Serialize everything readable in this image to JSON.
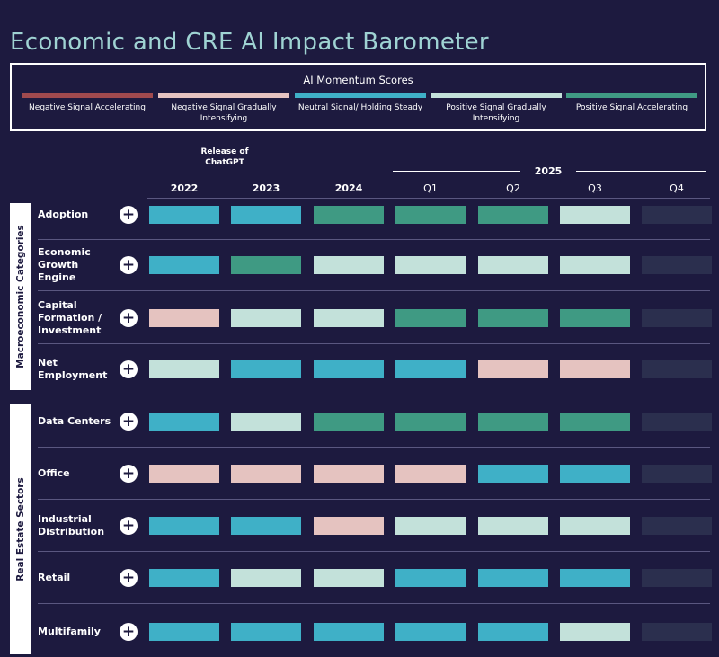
{
  "title": "Economic and CRE AI Impact Barometer",
  "legend": {
    "title": "AI Momentum Scores",
    "items": [
      {
        "key": "neg_acc",
        "label": "Negative Signal Accelerating",
        "color": "#a04a4e"
      },
      {
        "key": "neg_grad",
        "label": "Negative Signal Gradually Intensifying",
        "color": "#e5c3c0"
      },
      {
        "key": "neutral",
        "label": "Neutral Signal/ Holding Steady",
        "color": "#3fb0c7"
      },
      {
        "key": "pos_grad",
        "label": "Positive Signal Gradually Intensifying",
        "color": "#c3e1da"
      },
      {
        "key": "pos_acc",
        "label": "Positive Signal Accelerating",
        "color": "#3f9a83"
      }
    ]
  },
  "annotation": "Release of ChatGPT",
  "year_group": "2025",
  "columns": [
    "2022",
    "2023",
    "2024",
    "Q1",
    "Q2",
    "Q3",
    "Q4"
  ],
  "groups": [
    {
      "label": "Macroeconomic Categories"
    },
    {
      "label": "Real Estate Sectors"
    }
  ],
  "chart_data": {
    "type": "heatmap",
    "title": "Economic and CRE AI Impact Barometer",
    "columns": [
      "2022",
      "2023",
      "2024",
      "Q1",
      "Q2",
      "Q3",
      "Q4"
    ],
    "legend_placement": "top",
    "rows": [
      {
        "group": "Macroeconomic Categories",
        "label": "Adoption",
        "values": [
          "neutral",
          "neutral",
          "pos_acc",
          "pos_acc",
          "pos_acc",
          "pos_grad",
          "empty"
        ]
      },
      {
        "group": "Macroeconomic Categories",
        "label": "Economic Growth Engine",
        "values": [
          "neutral",
          "pos_acc",
          "pos_grad",
          "pos_grad",
          "pos_grad",
          "pos_grad",
          "empty"
        ]
      },
      {
        "group": "Macroeconomic Categories",
        "label": "Capital Formation / Investment",
        "values": [
          "neg_grad",
          "pos_grad",
          "pos_grad",
          "pos_acc",
          "pos_acc",
          "pos_acc",
          "empty"
        ]
      },
      {
        "group": "Macroeconomic Categories",
        "label": "Net Employment",
        "values": [
          "pos_grad",
          "neutral",
          "neutral",
          "neutral",
          "neg_grad",
          "neg_grad",
          "empty"
        ]
      },
      {
        "group": "Real Estate Sectors",
        "label": "Data Centers",
        "values": [
          "neutral",
          "pos_grad",
          "pos_acc",
          "pos_acc",
          "pos_acc",
          "pos_acc",
          "empty"
        ]
      },
      {
        "group": "Real Estate Sectors",
        "label": "Office",
        "values": [
          "neg_grad",
          "neg_grad",
          "neg_grad",
          "neg_grad",
          "neutral",
          "neutral",
          "empty"
        ]
      },
      {
        "group": "Real Estate Sectors",
        "label": "Industrial Distribution",
        "values": [
          "neutral",
          "neutral",
          "neg_grad",
          "pos_grad",
          "pos_grad",
          "pos_grad",
          "empty"
        ]
      },
      {
        "group": "Real Estate Sectors",
        "label": "Retail",
        "values": [
          "neutral",
          "pos_grad",
          "pos_grad",
          "neutral",
          "neutral",
          "neutral",
          "empty"
        ]
      },
      {
        "group": "Real Estate Sectors",
        "label": "Multifamily",
        "values": [
          "neutral",
          "neutral",
          "neutral",
          "neutral",
          "neutral",
          "pos_grad",
          "empty"
        ]
      }
    ],
    "empty_color": "#2b2f4e"
  }
}
